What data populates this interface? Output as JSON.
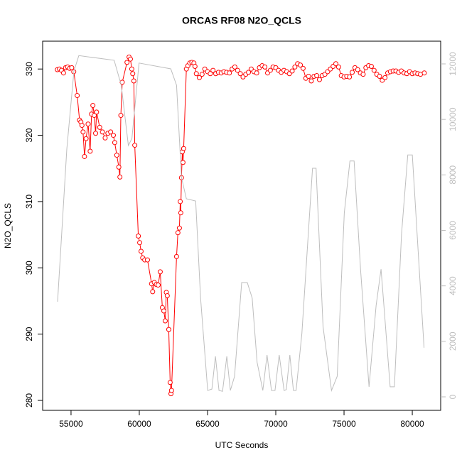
{
  "chart_data": {
    "type": "line",
    "title": "ORCAS RF08 N2O_QCLS",
    "xlabel": "UTC Seconds",
    "ylabel": "N2O_QCLS",
    "xlim": [
      52920,
      82080
    ],
    "xticks": [
      55000,
      60000,
      65000,
      70000,
      75000,
      80000
    ],
    "ylim": [
      278.5,
      334.2
    ],
    "yticks": [
      280,
      290,
      300,
      310,
      320,
      330
    ],
    "y2lim": [
      -486,
      12819
    ],
    "y2ticks": [
      0,
      2000,
      4000,
      6000,
      8000,
      10000,
      12000
    ],
    "series": [
      {
        "color": "#ff0000",
        "points": true,
        "axis": "y",
        "x": [
          54000,
          54150,
          54300,
          54450,
          54600,
          54750,
          54900,
          55050,
          55200,
          55450,
          55620,
          55720,
          55800,
          55880,
          55985,
          56100,
          56250,
          56400,
          56500,
          56600,
          56700,
          56800,
          56870,
          57100,
          57300,
          57500,
          57700,
          57900,
          58100,
          58200,
          58350,
          58500,
          58580,
          58650,
          58750,
          59100,
          59250,
          59350,
          59450,
          59520,
          59600,
          59670,
          59930,
          60030,
          60130,
          60250,
          60400,
          60600,
          60900,
          60980,
          61100,
          61250,
          61380,
          61535,
          61690,
          61800,
          61900,
          61980,
          62050,
          62160,
          62260,
          62320,
          62360,
          62730,
          62830,
          62940,
          63000,
          63040,
          63090,
          63150,
          63200,
          63250,
          63450,
          63560,
          63700,
          63850,
          64000,
          64080,
          64180,
          64400,
          64600,
          64800,
          65000,
          65200,
          65400,
          65600,
          65800,
          66000,
          66200,
          66400,
          66600,
          66800,
          67000,
          67200,
          67400,
          67600,
          67800,
          68000,
          68200,
          68400,
          68600,
          68800,
          69000,
          69200,
          69400,
          69600,
          69800,
          70000,
          70200,
          70400,
          70600,
          70800,
          71000,
          71200,
          71400,
          71600,
          71800,
          72000,
          72200,
          72400,
          72600,
          72800,
          73000,
          73200,
          73400,
          73600,
          73800,
          74000,
          74200,
          74400,
          74600,
          74800,
          75000,
          75200,
          75400,
          75600,
          75800,
          76000,
          76200,
          76400,
          76600,
          76800,
          77000,
          77200,
          77400,
          77600,
          77800,
          78000,
          78200,
          78400,
          78600,
          78800,
          79000,
          79200,
          79400,
          79600,
          79800,
          80000,
          80200,
          80400,
          80600,
          80880
        ],
        "values": [
          329.9,
          330.0,
          329.8,
          329.4,
          330.2,
          330.3,
          330.1,
          330.2,
          329.6,
          326.0,
          322.3,
          322.0,
          321.5,
          320.5,
          316.8,
          319.5,
          321.7,
          317.6,
          323.2,
          324.5,
          323.0,
          320.3,
          323.5,
          321.2,
          320.5,
          319.6,
          320.3,
          320.5,
          320.0,
          318.9,
          317.0,
          315.2,
          313.7,
          323.0,
          328.0,
          331.0,
          331.8,
          331.5,
          330.0,
          329.3,
          328.2,
          318.5,
          304.8,
          303.8,
          302.5,
          301.5,
          301.2,
          301.2,
          297.6,
          296.4,
          297.8,
          297.5,
          297.4,
          299.4,
          294.0,
          293.5,
          292.0,
          296.3,
          295.8,
          290.7,
          282.7,
          281.0,
          281.5,
          301.7,
          305.3,
          306.0,
          310.0,
          308.3,
          313.6,
          317.5,
          315.9,
          318.0,
          330.0,
          330.5,
          330.9,
          331.0,
          330.9,
          330.4,
          329.3,
          328.7,
          329.2,
          330.0,
          329.6,
          329.3,
          329.8,
          329.3,
          329.5,
          329.4,
          329.6,
          329.5,
          329.4,
          330.0,
          330.3,
          329.8,
          329.3,
          328.8,
          329.2,
          329.5,
          330.0,
          329.6,
          329.4,
          330.2,
          330.5,
          330.3,
          329.4,
          329.8,
          330.3,
          330.2,
          329.8,
          329.5,
          329.8,
          329.6,
          329.3,
          329.7,
          330.3,
          330.8,
          330.6,
          330.1,
          328.6,
          328.9,
          328.2,
          328.9,
          329.0,
          328.4,
          329.0,
          329.2,
          329.6,
          330.0,
          330.4,
          330.8,
          330.3,
          329.0,
          328.8,
          328.9,
          328.8,
          329.5,
          330.2,
          329.9,
          329.4,
          329.2,
          330.2,
          330.5,
          330.4,
          329.8,
          329.2,
          328.9,
          328.3,
          328.7,
          329.4,
          329.6,
          329.7,
          329.7,
          329.5,
          329.7,
          329.4,
          329.3,
          329.6,
          329.3,
          329.4,
          329.3,
          329.2,
          329.4
        ]
      },
      {
        "color": "#bebebe",
        "points": false,
        "axis": "y2",
        "x": [
          54015,
          54690,
          55210,
          55570,
          58160,
          58680,
          59200,
          59460,
          59980,
          62310,
          62730,
          63090,
          63450,
          64130,
          64490,
          65010,
          65320,
          65580,
          65840,
          66100,
          66410,
          66670,
          66980,
          67500,
          67910,
          68270,
          68630,
          69050,
          69360,
          69680,
          69940,
          70250,
          70610,
          70770,
          71030,
          71290,
          71490,
          71910,
          72690,
          72950,
          73460,
          74080,
          74500,
          75020,
          75430,
          75740,
          76210,
          76830,
          77350,
          77710,
          77920,
          78380,
          78690,
          79210,
          79670,
          80000,
          80450,
          80860
        ],
        "values": [
          3430,
          8930,
          11740,
          12300,
          12130,
          11230,
          9060,
          9310,
          12030,
          11820,
          11230,
          7910,
          7140,
          7060,
          3560,
          230,
          280,
          1460,
          230,
          200,
          1460,
          230,
          740,
          4120,
          4120,
          3560,
          1250,
          230,
          1510,
          230,
          230,
          1510,
          230,
          260,
          1510,
          230,
          230,
          2280,
          8240,
          8240,
          2530,
          230,
          740,
          6630,
          8500,
          8500,
          4580,
          360,
          3300,
          4600,
          3300,
          360,
          360,
          5860,
          8720,
          8720,
          5090,
          1770
        ]
      }
    ]
  }
}
